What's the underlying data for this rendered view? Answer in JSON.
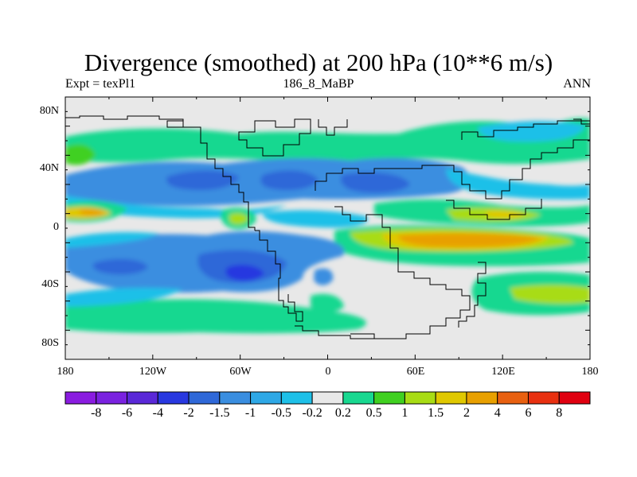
{
  "title": "Divergence (smoothed) at 200 hPa (10**6 m/s)",
  "left_subtitle": "Expt = texPl1",
  "center_subtitle": "186_8_MaBP",
  "right_subtitle": "ANN",
  "lat_ticks": [
    "80N",
    "40N",
    "0",
    "40S",
    "80S"
  ],
  "lon_ticks": [
    "180",
    "120W",
    "60W",
    "0",
    "60E",
    "120E",
    "180"
  ],
  "colorbar": {
    "labels": [
      "-8",
      "-6",
      "-4",
      "-2",
      "-1.5",
      "-1",
      "-0.5",
      "-0.2",
      "0.2",
      "0.5",
      "1",
      "1.5",
      "2",
      "4",
      "6",
      "8"
    ],
    "colors": [
      "#8a1ce0",
      "#7a22e0",
      "#5a28d8",
      "#2838e0",
      "#2f68d8",
      "#3a8ee0",
      "#2ea8e6",
      "#1ec0e8",
      "#e8e8e8",
      "#18d890",
      "#40d020",
      "#a8dc14",
      "#e0c800",
      "#e8a000",
      "#e86010",
      "#e83010",
      "#e00010"
    ]
  },
  "palette": {
    "background_field": "#e8e8e8",
    "ocean_blue": "#3a8ee0",
    "deep_blue": "#2f68d8",
    "cyan": "#1ec0e8",
    "green": "#18d890",
    "lime": "#a8dc14",
    "yellow": "#e0c800",
    "orange": "#e8a000",
    "dark_blue": "#2838e0"
  }
}
